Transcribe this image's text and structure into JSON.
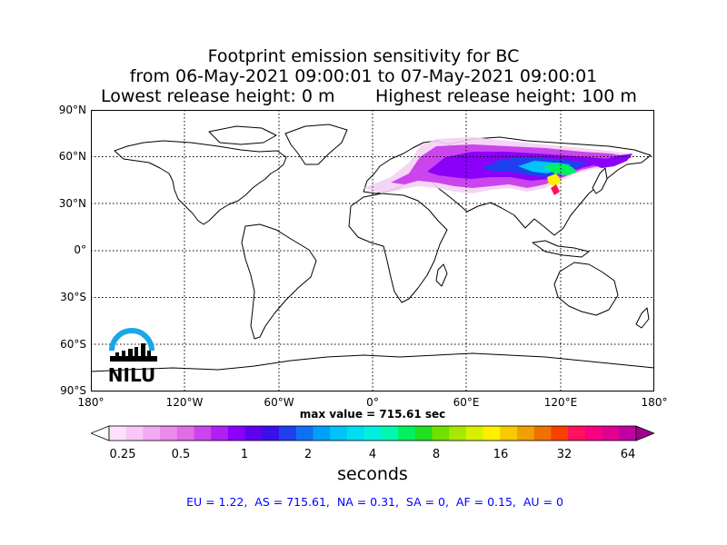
{
  "title": {
    "line1": "Footprint emission sensitivity for BC",
    "line2": "from 06-May-2021 09:00:01 to 07-May-2021 09:00:01",
    "lowest": "Lowest release height: 0 m",
    "highest": "Highest release height: 100 m"
  },
  "lat_labels": [
    "90°N",
    "60°N",
    "30°N",
    "0°",
    "30°S",
    "60°S",
    "90°S"
  ],
  "lon_labels": [
    "180°",
    "120°W",
    "60°W",
    "0°",
    "60°E",
    "120°E",
    "180°"
  ],
  "max_value": "max value = 715.61 sec",
  "colorbar": {
    "ticks": [
      "0.25",
      "0.5",
      "1",
      "2",
      "4",
      "8",
      "16",
      "32",
      "64"
    ],
    "units": "seconds",
    "colors": [
      "#ffffff",
      "#fde0fd",
      "#f8c6f8",
      "#f2a8f2",
      "#ea8aea",
      "#e06ce6",
      "#cc44ee",
      "#b020f4",
      "#8a00f8",
      "#6000f0",
      "#3a10e8",
      "#2040f0",
      "#1070f4",
      "#00a0f8",
      "#00c4f8",
      "#00dcf0",
      "#00f0e0",
      "#00f8b0",
      "#00f060",
      "#20e020",
      "#70e000",
      "#a8e800",
      "#d8f000",
      "#fff000",
      "#f8c800",
      "#f0a000",
      "#f07000",
      "#f84000",
      "#ff1060",
      "#f80080",
      "#e00090",
      "#c000a0",
      "#a00090"
    ]
  },
  "logo": {
    "text": "NILU",
    "arc_color": "#1aa7e6"
  },
  "stats": "EU = 1.22,  AS = 715.61,  NA = 0.31,  SA = 0,  AF = 0.15,  AU = 0",
  "map": {
    "land_color": "#ffffff",
    "outline_color": "#000000",
    "footprint_colors": [
      "#f4d0f4",
      "#cc44ee",
      "#8a00f8",
      "#2040f0",
      "#00c4f8",
      "#00f060",
      "#fff000",
      "#ff1060"
    ]
  }
}
